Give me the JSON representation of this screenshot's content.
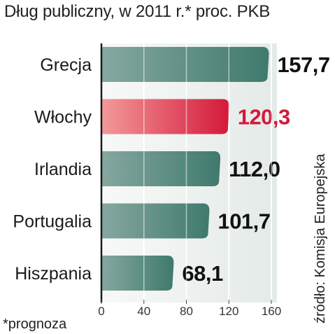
{
  "title": "Dług publiczny, w 2011 r.* proc. PKB",
  "footnote": "*prognoza",
  "source": "źródło: Komisja Europejska",
  "colors": {
    "bar_default": "#3f7a6d",
    "bar_default_light": "#86a8a0",
    "bar_highlight": "#d4193a",
    "bar_highlight_light": "#f29a9a",
    "value_default": "#111111",
    "value_highlight": "#d4193a",
    "background_band": "#e3eae8"
  },
  "chart_data": {
    "type": "bar",
    "orientation": "horizontal",
    "categories": [
      "Grecja",
      "Włochy",
      "Irlandia",
      "Portugalia",
      "Hiszpania"
    ],
    "values": [
      157.7,
      120.3,
      112.0,
      101.7,
      68.1
    ],
    "value_labels": [
      "157,7",
      "120,3",
      "112,0",
      "101,7",
      "68,1"
    ],
    "highlight": [
      false,
      true,
      false,
      false,
      false
    ],
    "xticks": [
      0,
      40,
      80,
      120,
      160
    ],
    "xlim": [
      0,
      160
    ],
    "grid": true
  }
}
